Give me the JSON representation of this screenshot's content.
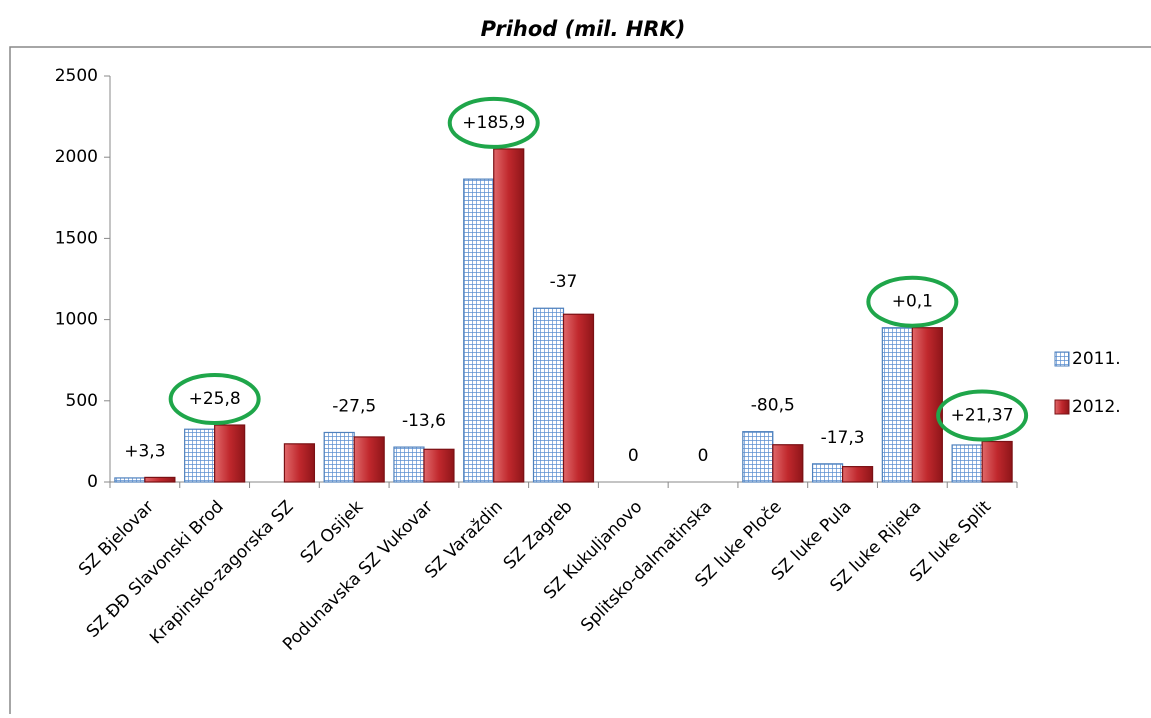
{
  "chart_data": {
    "type": "bar",
    "title": "Prihod (mil. HRK)",
    "categories": [
      "SZ Bjelovar",
      "SZ ĐĐ Slavonski Brod",
      "Krapinsko-zagorska SZ",
      "SZ Osijek",
      "Podunavska SZ Vukovar",
      "SZ Varaždin",
      "SZ Zagreb",
      "SZ Kukuljanovo",
      "Splitsko-dalmatinska",
      "SZ luke Ploče",
      "SZ luke Pula",
      "SZ luke Rijeka",
      "SZ luke Split"
    ],
    "series": [
      {
        "name": "2011.",
        "color": "#4f81bd",
        "values": [
          25,
          325,
          null,
          305,
          215,
          1865,
          1070,
          0,
          0,
          310,
          112,
          950,
          228
        ]
      },
      {
        "name": "2012.",
        "color": "#c0282d",
        "values": [
          28.3,
          350.8,
          235,
          277.5,
          201.4,
          2050.9,
          1033,
          0,
          0,
          229.5,
          94.7,
          950.1,
          249.37
        ]
      }
    ],
    "annotations": [
      "+3,3",
      "+25,8",
      null,
      "-27,5",
      "-13,6",
      "+185,9",
      "-37",
      "0",
      "0",
      "-80,5",
      "-17,3",
      "+0,1",
      "+21,37"
    ],
    "highlighted": [
      false,
      true,
      false,
      false,
      false,
      true,
      false,
      false,
      false,
      false,
      false,
      true,
      true
    ],
    "highlight_color": "#1fa64a",
    "ylim": [
      0,
      2500
    ],
    "yticks": [
      0,
      500,
      1000,
      1500,
      2000,
      2500
    ],
    "grid": false,
    "legend": "right"
  }
}
